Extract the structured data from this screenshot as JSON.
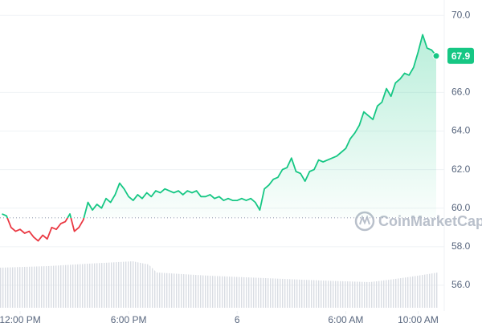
{
  "chart_data": {
    "type": "line",
    "watermark": "CoinMarketCap",
    "values": [
      59.7,
      59.6,
      59.0,
      58.8,
      58.9,
      58.7,
      58.8,
      58.5,
      58.3,
      58.6,
      58.4,
      59.0,
      58.9,
      59.2,
      59.3,
      59.7,
      58.8,
      59.0,
      59.4,
      60.3,
      59.9,
      60.2,
      60.0,
      60.5,
      60.3,
      60.7,
      61.3,
      61.0,
      60.6,
      60.4,
      60.7,
      60.5,
      60.8,
      60.6,
      60.9,
      60.8,
      61.0,
      60.9,
      60.8,
      60.9,
      60.7,
      60.9,
      60.8,
      60.9,
      60.6,
      60.6,
      60.7,
      60.5,
      60.6,
      60.4,
      60.5,
      60.4,
      60.4,
      60.5,
      60.4,
      60.5,
      60.3,
      59.9,
      61.0,
      61.2,
      61.5,
      61.6,
      62.0,
      62.1,
      62.6,
      61.9,
      61.8,
      61.4,
      61.9,
      62.0,
      62.5,
      62.4,
      62.5,
      62.6,
      62.7,
      62.9,
      63.1,
      63.6,
      63.9,
      64.3,
      65.0,
      64.8,
      64.6,
      65.3,
      65.5,
      66.2,
      65.8,
      66.5,
      66.7,
      67.0,
      66.9,
      67.3,
      68.1,
      69.0,
      68.3,
      68.2,
      67.9
    ],
    "baseline": 59.5,
    "current_price": 67.9,
    "up_color": "#16c784",
    "down_color": "#ea3943",
    "xlim": [
      0,
      96
    ],
    "xticks": [
      {
        "value": 4,
        "label": "12:00 PM"
      },
      {
        "value": 28,
        "label": "6:00 PM"
      },
      {
        "value": 52,
        "label": "6"
      },
      {
        "value": 76,
        "label": "6:00 AM"
      },
      {
        "value": 92,
        "label": "10:00 AM"
      }
    ],
    "ylim": [
      54.5,
      70.8
    ],
    "yticks": [
      {
        "value": 56,
        "label": "56.0"
      },
      {
        "value": 58,
        "label": "58.0"
      },
      {
        "value": 60,
        "label": "60.0"
      },
      {
        "value": 62,
        "label": "62.0"
      },
      {
        "value": 64,
        "label": "64.0"
      },
      {
        "value": 66,
        "label": "66.0"
      },
      {
        "value": 70,
        "label": "70.0"
      }
    ],
    "grid": true
  }
}
